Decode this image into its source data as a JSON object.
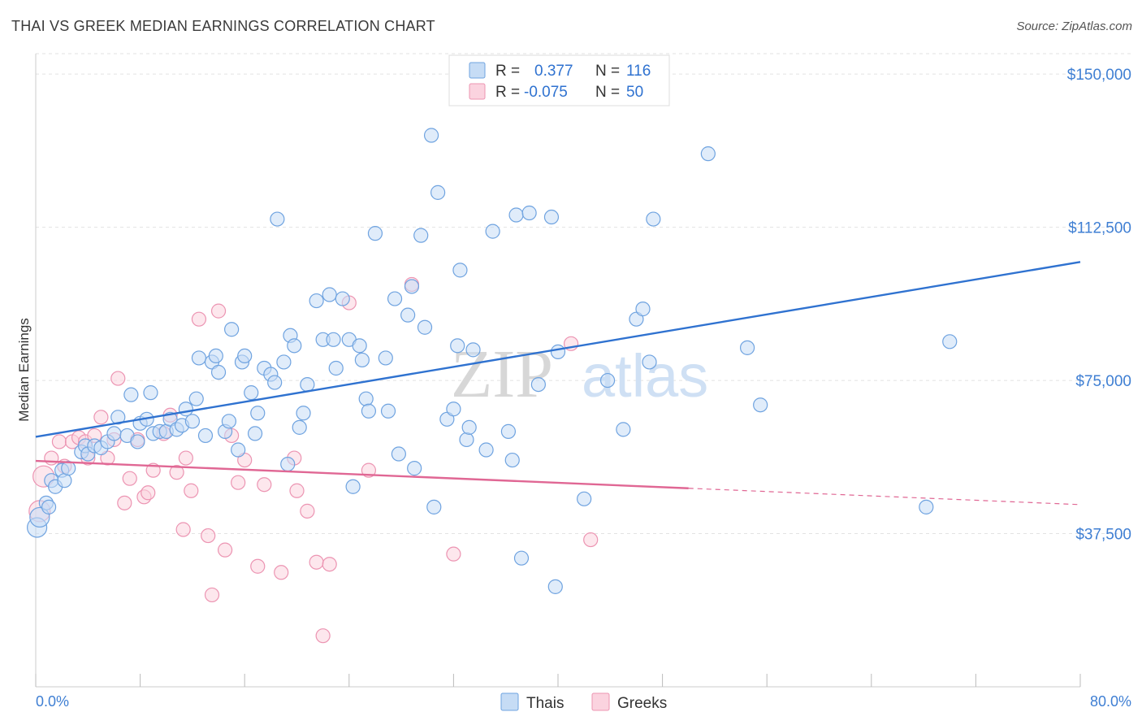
{
  "title": "THAI VS GREEK MEDIAN EARNINGS CORRELATION CHART",
  "source": "Source: ZipAtlas.com",
  "watermark": {
    "zip": "ZIP",
    "atlas": "atlas"
  },
  "legend": {
    "rows": [
      {
        "r_label": "R =",
        "r_value": "0.377",
        "n_label": "N =",
        "n_value": "116",
        "color": "#8ab6ea"
      },
      {
        "r_label": "R =",
        "r_value": "-0.075",
        "n_label": "N =",
        "n_value": "50",
        "color": "#f4a8c0"
      }
    ]
  },
  "bottom_legend": [
    {
      "label": "Thais",
      "color": "#8ab6ea"
    },
    {
      "label": "Greeks",
      "color": "#f4a8c0"
    }
  ],
  "chart_data": {
    "type": "scatter",
    "xlabel": "",
    "ylabel": "Median Earnings",
    "xlim": [
      0,
      80
    ],
    "ylim": [
      0,
      155000
    ],
    "x_tick_labels": [
      "0.0%",
      "80.0%"
    ],
    "y_ticks": [
      37500,
      75000,
      112500,
      150000
    ],
    "y_tick_labels": [
      "$37,500",
      "$75,000",
      "$112,500",
      "$150,000"
    ],
    "grid": true,
    "colors": {
      "thais_fill": "#c6dcf5",
      "thais_stroke": "#6fa3e0",
      "thais_line": "#2f72d0",
      "greeks_fill": "#fbd3df",
      "greeks_stroke": "#ec94b2",
      "greeks_line": "#e06794",
      "axis_text": "#3f7fd3"
    },
    "series": [
      {
        "name": "Thais",
        "trend": {
          "x": [
            0,
            80
          ],
          "y": [
            61200,
            104000
          ]
        },
        "points": [
          [
            0.1,
            39000
          ],
          [
            0.3,
            41500
          ],
          [
            0.8,
            45000
          ],
          [
            1.0,
            44000
          ],
          [
            1.2,
            50500
          ],
          [
            1.5,
            49000
          ],
          [
            2.0,
            53000
          ],
          [
            2.2,
            50500
          ],
          [
            2.5,
            53500
          ],
          [
            3.5,
            57500
          ],
          [
            3.8,
            59000
          ],
          [
            4.0,
            57000
          ],
          [
            4.5,
            59000
          ],
          [
            5.0,
            58500
          ],
          [
            5.5,
            60000
          ],
          [
            6.0,
            62000
          ],
          [
            6.3,
            66000
          ],
          [
            7.0,
            61500
          ],
          [
            7.3,
            71500
          ],
          [
            7.8,
            60000
          ],
          [
            8.0,
            64500
          ],
          [
            8.5,
            65500
          ],
          [
            8.8,
            72000
          ],
          [
            9.0,
            62000
          ],
          [
            9.5,
            62500
          ],
          [
            10.0,
            62500
          ],
          [
            10.3,
            65500
          ],
          [
            10.8,
            63000
          ],
          [
            11.2,
            64000
          ],
          [
            11.5,
            68000
          ],
          [
            12.0,
            65000
          ],
          [
            12.3,
            70500
          ],
          [
            12.5,
            80500
          ],
          [
            13.0,
            61500
          ],
          [
            13.5,
            79500
          ],
          [
            13.8,
            81000
          ],
          [
            14.0,
            77000
          ],
          [
            14.5,
            62500
          ],
          [
            14.8,
            65000
          ],
          [
            15.0,
            87500
          ],
          [
            15.5,
            58000
          ],
          [
            15.8,
            79500
          ],
          [
            16.0,
            81000
          ],
          [
            16.5,
            72000
          ],
          [
            16.8,
            62000
          ],
          [
            17.0,
            67000
          ],
          [
            17.5,
            78000
          ],
          [
            18.0,
            76500
          ],
          [
            18.3,
            74500
          ],
          [
            18.5,
            114500
          ],
          [
            19.0,
            79500
          ],
          [
            19.3,
            54500
          ],
          [
            19.5,
            86000
          ],
          [
            19.8,
            83500
          ],
          [
            20.2,
            63500
          ],
          [
            20.5,
            67000
          ],
          [
            20.8,
            74000
          ],
          [
            21.5,
            94500
          ],
          [
            22.0,
            85000
          ],
          [
            22.5,
            96000
          ],
          [
            22.8,
            85000
          ],
          [
            23.0,
            78000
          ],
          [
            23.5,
            95000
          ],
          [
            24.0,
            85000
          ],
          [
            24.3,
            49000
          ],
          [
            24.8,
            83500
          ],
          [
            25.0,
            80000
          ],
          [
            25.3,
            70500
          ],
          [
            25.5,
            67500
          ],
          [
            26.0,
            111000
          ],
          [
            26.8,
            80500
          ],
          [
            27.0,
            67500
          ],
          [
            27.5,
            95000
          ],
          [
            27.8,
            57000
          ],
          [
            28.5,
            91000
          ],
          [
            28.8,
            98000
          ],
          [
            29.0,
            53500
          ],
          [
            29.5,
            110500
          ],
          [
            29.8,
            88000
          ],
          [
            30.3,
            135000
          ],
          [
            30.5,
            44000
          ],
          [
            30.8,
            121000
          ],
          [
            31.5,
            65500
          ],
          [
            32.0,
            68000
          ],
          [
            32.3,
            83500
          ],
          [
            32.5,
            102000
          ],
          [
            33.0,
            60500
          ],
          [
            33.2,
            63500
          ],
          [
            33.5,
            82500
          ],
          [
            34.5,
            58000
          ],
          [
            35.0,
            111500
          ],
          [
            36.2,
            62500
          ],
          [
            36.5,
            55500
          ],
          [
            36.8,
            115500
          ],
          [
            37.2,
            31500
          ],
          [
            37.8,
            116000
          ],
          [
            38.5,
            74000
          ],
          [
            39.5,
            115000
          ],
          [
            39.8,
            24500
          ],
          [
            40.0,
            82000
          ],
          [
            42.0,
            46000
          ],
          [
            43.8,
            75000
          ],
          [
            45.0,
            63000
          ],
          [
            46.0,
            90000
          ],
          [
            46.5,
            92500
          ],
          [
            47.0,
            79500
          ],
          [
            47.3,
            114500
          ],
          [
            51.5,
            130500
          ],
          [
            54.5,
            83000
          ],
          [
            55.5,
            69000
          ],
          [
            70.0,
            84500
          ],
          [
            68.2,
            44000
          ]
        ]
      },
      {
        "name": "Greeks",
        "trend": {
          "x": [
            0,
            50
          ],
          "y": [
            55300,
            48600
          ]
        },
        "trend_dashed": {
          "x": [
            50,
            80
          ],
          "y": [
            48600,
            44600
          ]
        },
        "points": [
          [
            0.3,
            43000
          ],
          [
            0.6,
            51500
          ],
          [
            1.2,
            56000
          ],
          [
            1.8,
            60000
          ],
          [
            2.2,
            54000
          ],
          [
            2.8,
            60000
          ],
          [
            3.3,
            61000
          ],
          [
            3.8,
            60000
          ],
          [
            4.0,
            56000
          ],
          [
            4.5,
            61500
          ],
          [
            5.0,
            66000
          ],
          [
            5.5,
            56000
          ],
          [
            6.0,
            60500
          ],
          [
            6.3,
            75500
          ],
          [
            6.8,
            45000
          ],
          [
            7.2,
            51000
          ],
          [
            7.8,
            60500
          ],
          [
            8.3,
            46500
          ],
          [
            8.6,
            47500
          ],
          [
            9.0,
            53000
          ],
          [
            9.8,
            62000
          ],
          [
            10.3,
            66500
          ],
          [
            10.8,
            52500
          ],
          [
            11.3,
            38500
          ],
          [
            11.5,
            56000
          ],
          [
            11.9,
            48000
          ],
          [
            12.5,
            90000
          ],
          [
            13.2,
            37000
          ],
          [
            13.5,
            22500
          ],
          [
            14.0,
            92000
          ],
          [
            14.5,
            33500
          ],
          [
            15.0,
            61500
          ],
          [
            15.5,
            50000
          ],
          [
            16.0,
            55500
          ],
          [
            17.0,
            29500
          ],
          [
            17.5,
            49500
          ],
          [
            18.8,
            28000
          ],
          [
            19.8,
            56000
          ],
          [
            20.0,
            48000
          ],
          [
            20.8,
            43000
          ],
          [
            21.5,
            30500
          ],
          [
            22.0,
            12500
          ],
          [
            22.5,
            30000
          ],
          [
            24.0,
            94000
          ],
          [
            25.5,
            53000
          ],
          [
            28.8,
            98500
          ],
          [
            32.0,
            32500
          ],
          [
            41.0,
            84000
          ],
          [
            42.5,
            36000
          ]
        ]
      }
    ]
  }
}
